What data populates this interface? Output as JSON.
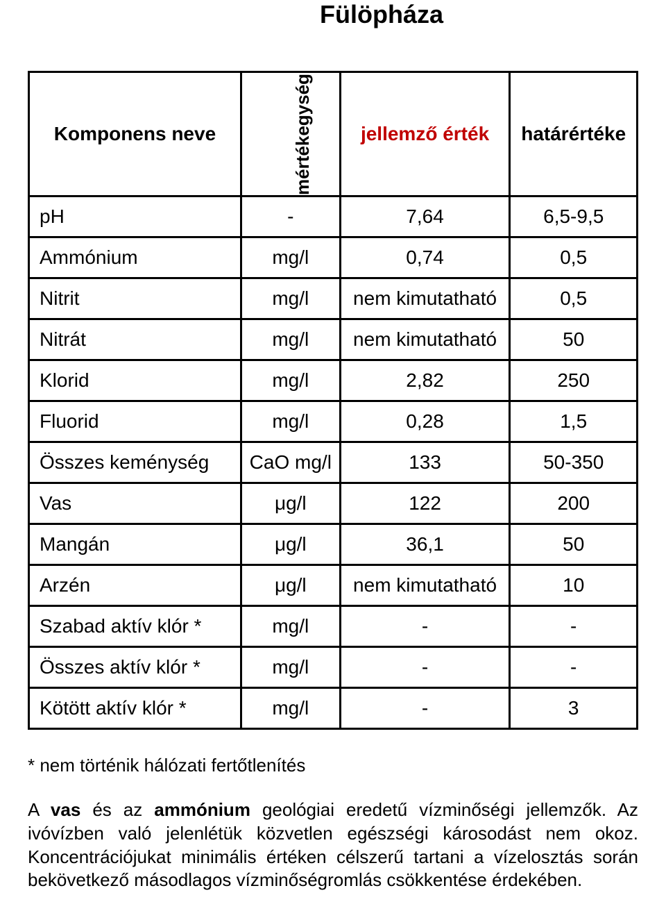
{
  "title": "Fülöpháza",
  "headers": {
    "component": "Komponens neve",
    "unit": "mértékegység",
    "value": "jellemző érték",
    "limit": "határértéke",
    "value_color": "#c00000"
  },
  "rows": [
    {
      "component": "pH",
      "unit": "-",
      "value": "7,64",
      "limit": "6,5-9,5"
    },
    {
      "component": "Ammónium",
      "unit": "mg/l",
      "value": "0,74",
      "limit": "0,5"
    },
    {
      "component": "Nitrit",
      "unit": "mg/l",
      "value": "nem kimutatható",
      "limit": "0,5"
    },
    {
      "component": "Nitrát",
      "unit": "mg/l",
      "value": "nem kimutatható",
      "limit": "50"
    },
    {
      "component": "Klorid",
      "unit": "mg/l",
      "value": "2,82",
      "limit": "250"
    },
    {
      "component": "Fluorid",
      "unit": "mg/l",
      "value": "0,28",
      "limit": "1,5"
    },
    {
      "component": "Összes keménység",
      "unit": "CaO mg/l",
      "value": "133",
      "limit": "50-350"
    },
    {
      "component": "Vas",
      "unit": "μg/l",
      "value": "122",
      "limit": "200"
    },
    {
      "component": "Mangán",
      "unit": "μg/l",
      "value": "36,1",
      "limit": "50"
    },
    {
      "component": "Arzén",
      "unit": "μg/l",
      "value": "nem kimutatható",
      "limit": "10"
    },
    {
      "component": "Szabad aktív klór *",
      "unit": "mg/l",
      "value": "-",
      "limit": "-"
    },
    {
      "component": "Összes aktív klór *",
      "unit": "mg/l",
      "value": "-",
      "limit": "-"
    },
    {
      "component": "Kötött aktív klór *",
      "unit": "mg/l",
      "value": "-",
      "limit": "3"
    }
  ],
  "footnote": "* nem történik hálózati fertőtlenítés",
  "paragraph": {
    "prefix": "A ",
    "bold1": "vas",
    "mid": " és az ",
    "bold2": "ammónium",
    "rest": " geológiai eredetű vízminőségi jellemzők. Az ivóvízben való jelenlétük közvetlen egészségi károsodást nem okoz. Koncentrációjukat minimális értéken célszerű tartani a vízelosztás során bekövetkező másodlagos vízminőségromlás csökkentése érdekében."
  },
  "style": {
    "border_color": "#000000",
    "background_color": "#ffffff",
    "text_color": "#000000",
    "title_fontsize": 36,
    "cell_fontsize": 28,
    "footnote_fontsize": 26,
    "paragraph_fontsize": 26
  }
}
